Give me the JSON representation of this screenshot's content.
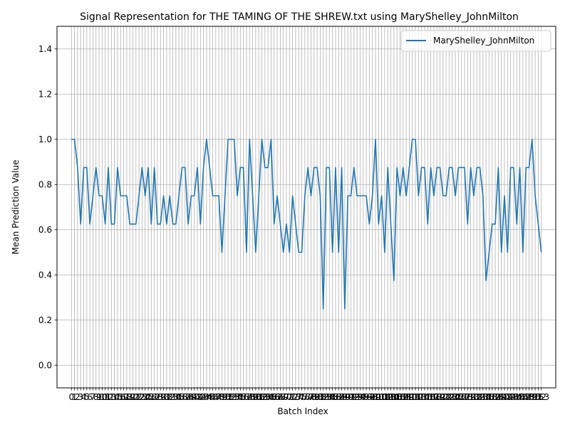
{
  "chart_data": {
    "type": "line",
    "title": "Signal Representation for THE TAMING OF THE SHREW.txt using MaryShelley_JohnMilton",
    "xlabel": "Batch Index",
    "ylabel": "Mean Prediction Value",
    "ylim": [
      -0.1,
      1.5
    ],
    "xlim": [
      -4.7,
      157.7
    ],
    "yticks": [
      0.0,
      0.2,
      0.4,
      0.6,
      0.8,
      1.0,
      1.2,
      1.4
    ],
    "ytick_labels": [
      "0.0",
      "0.2",
      "0.4",
      "0.6",
      "0.8",
      "1.0",
      "1.2",
      "1.4"
    ],
    "grid": true,
    "legend": "top-right",
    "series": [
      {
        "name": "MaryShelley_JohnMilton",
        "color": "#1f77b4",
        "x": [
          0,
          1,
          2,
          3,
          4,
          5,
          6,
          7,
          8,
          9,
          10,
          11,
          12,
          13,
          14,
          15,
          16,
          17,
          18,
          19,
          20,
          21,
          22,
          23,
          24,
          25,
          26,
          27,
          28,
          29,
          30,
          31,
          32,
          33,
          34,
          35,
          36,
          37,
          38,
          39,
          40,
          41,
          42,
          43,
          44,
          45,
          46,
          47,
          48,
          49,
          50,
          51,
          52,
          53,
          54,
          55,
          56,
          57,
          58,
          59,
          60,
          61,
          62,
          63,
          64,
          65,
          66,
          67,
          68,
          69,
          70,
          71,
          72,
          73,
          74,
          75,
          76,
          77,
          78,
          79,
          80,
          81,
          82,
          83,
          84,
          85,
          86,
          87,
          88,
          89,
          90,
          91,
          92,
          93,
          94,
          95,
          96,
          97,
          98,
          99,
          100,
          101,
          102,
          103,
          104,
          105,
          106,
          107,
          108,
          109,
          110,
          111,
          112,
          113,
          114,
          115,
          116,
          117,
          118,
          119,
          120,
          121,
          122,
          123,
          124,
          125,
          126,
          127,
          128,
          129,
          130,
          131,
          132,
          133,
          134,
          135,
          136,
          137,
          138,
          139,
          140,
          141,
          142,
          143,
          144,
          145,
          146,
          147,
          148,
          149,
          150,
          151,
          152,
          153
        ],
        "values": [
          1.0,
          1.0,
          0.875,
          0.625,
          0.875,
          0.875,
          0.625,
          0.75,
          0.875,
          0.75,
          0.75,
          0.625,
          0.875,
          0.625,
          0.625,
          0.875,
          0.75,
          0.75,
          0.75,
          0.625,
          0.625,
          0.625,
          0.75,
          0.875,
          0.75,
          0.875,
          0.625,
          0.875,
          0.625,
          0.625,
          0.75,
          0.625,
          0.75,
          0.625,
          0.625,
          0.75,
          0.875,
          0.875,
          0.625,
          0.75,
          0.75,
          0.875,
          0.625,
          0.875,
          1.0,
          0.875,
          0.75,
          0.75,
          0.75,
          0.5,
          0.75,
          1.0,
          1.0,
          1.0,
          0.75,
          0.875,
          0.875,
          0.5,
          1.0,
          0.75,
          0.5,
          0.75,
          1.0,
          0.875,
          0.875,
          1.0,
          0.625,
          0.75,
          0.625,
          0.5,
          0.625,
          0.5,
          0.75,
          0.625,
          0.5,
          0.5,
          0.75,
          0.875,
          0.75,
          0.875,
          0.875,
          0.75,
          0.25,
          0.875,
          0.875,
          0.5,
          0.875,
          0.5,
          0.875,
          0.25,
          0.75,
          0.75,
          0.875,
          0.75,
          0.75,
          0.75,
          0.75,
          0.625,
          0.75,
          1.0,
          0.625,
          0.75,
          0.5,
          0.875,
          0.625,
          0.375,
          0.875,
          0.75,
          0.875,
          0.75,
          0.875,
          1.0,
          1.0,
          0.75,
          0.875,
          0.875,
          0.625,
          0.875,
          0.75,
          0.875,
          0.875,
          0.75,
          0.75,
          0.875,
          0.875,
          0.75,
          0.875,
          0.875,
          0.875,
          0.625,
          0.875,
          0.75,
          0.875,
          0.875,
          0.75,
          0.375,
          0.5,
          0.625,
          0.625,
          0.875,
          0.5,
          0.75,
          0.5,
          0.875,
          0.875,
          0.625,
          0.875,
          0.5,
          0.875,
          0.875,
          1.0,
          0.75,
          0.625,
          0.5
        ]
      }
    ]
  }
}
